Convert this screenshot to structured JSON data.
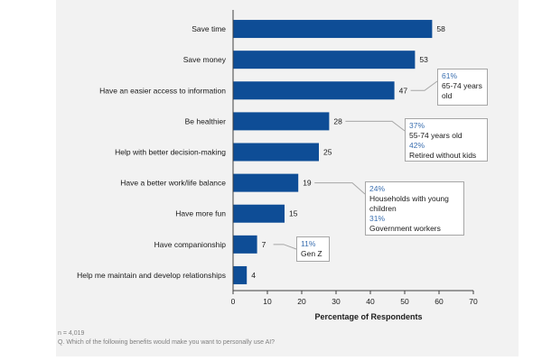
{
  "chart_data": {
    "type": "bar",
    "orientation": "horizontal",
    "categories": [
      "Save time",
      "Save money",
      "Have an easier access to information",
      "Be healthier",
      "Help with better decision-making",
      "Have a better work/life balance",
      "Have more fun",
      "Have companionship",
      "Help me maintain and develop relationships"
    ],
    "values": [
      58,
      53,
      47,
      28,
      25,
      19,
      15,
      7,
      4
    ],
    "xlabel": "Percentage of Respondents",
    "xlim": [
      0,
      70
    ],
    "xticks": [
      0,
      10,
      20,
      30,
      40,
      50,
      60,
      70
    ],
    "bar_color": "#0e4d96",
    "grid": false,
    "callouts": [
      {
        "category": "Have an easier access to information",
        "items": [
          {
            "pct": "61%",
            "text": "65-74 years old"
          }
        ]
      },
      {
        "category": "Be healthier",
        "items": [
          {
            "pct": "37%",
            "text": "55-74 years old"
          },
          {
            "pct": "42%",
            "text": "Retired without kids"
          }
        ]
      },
      {
        "category": "Have a better work/life balance",
        "items": [
          {
            "pct": "24%",
            "text": "Households with young children"
          },
          {
            "pct": "31%",
            "text": "Government workers"
          }
        ]
      },
      {
        "category": "Have companionship",
        "items": [
          {
            "pct": "11%",
            "text": "Gen Z"
          }
        ]
      }
    ]
  },
  "footnote": {
    "n": "n = 4,019",
    "question": "Q. Which of the following benefits would make you want to personally use AI?"
  },
  "colors": {
    "accent": "#3a6fb0",
    "background": "#f2f2f2"
  }
}
